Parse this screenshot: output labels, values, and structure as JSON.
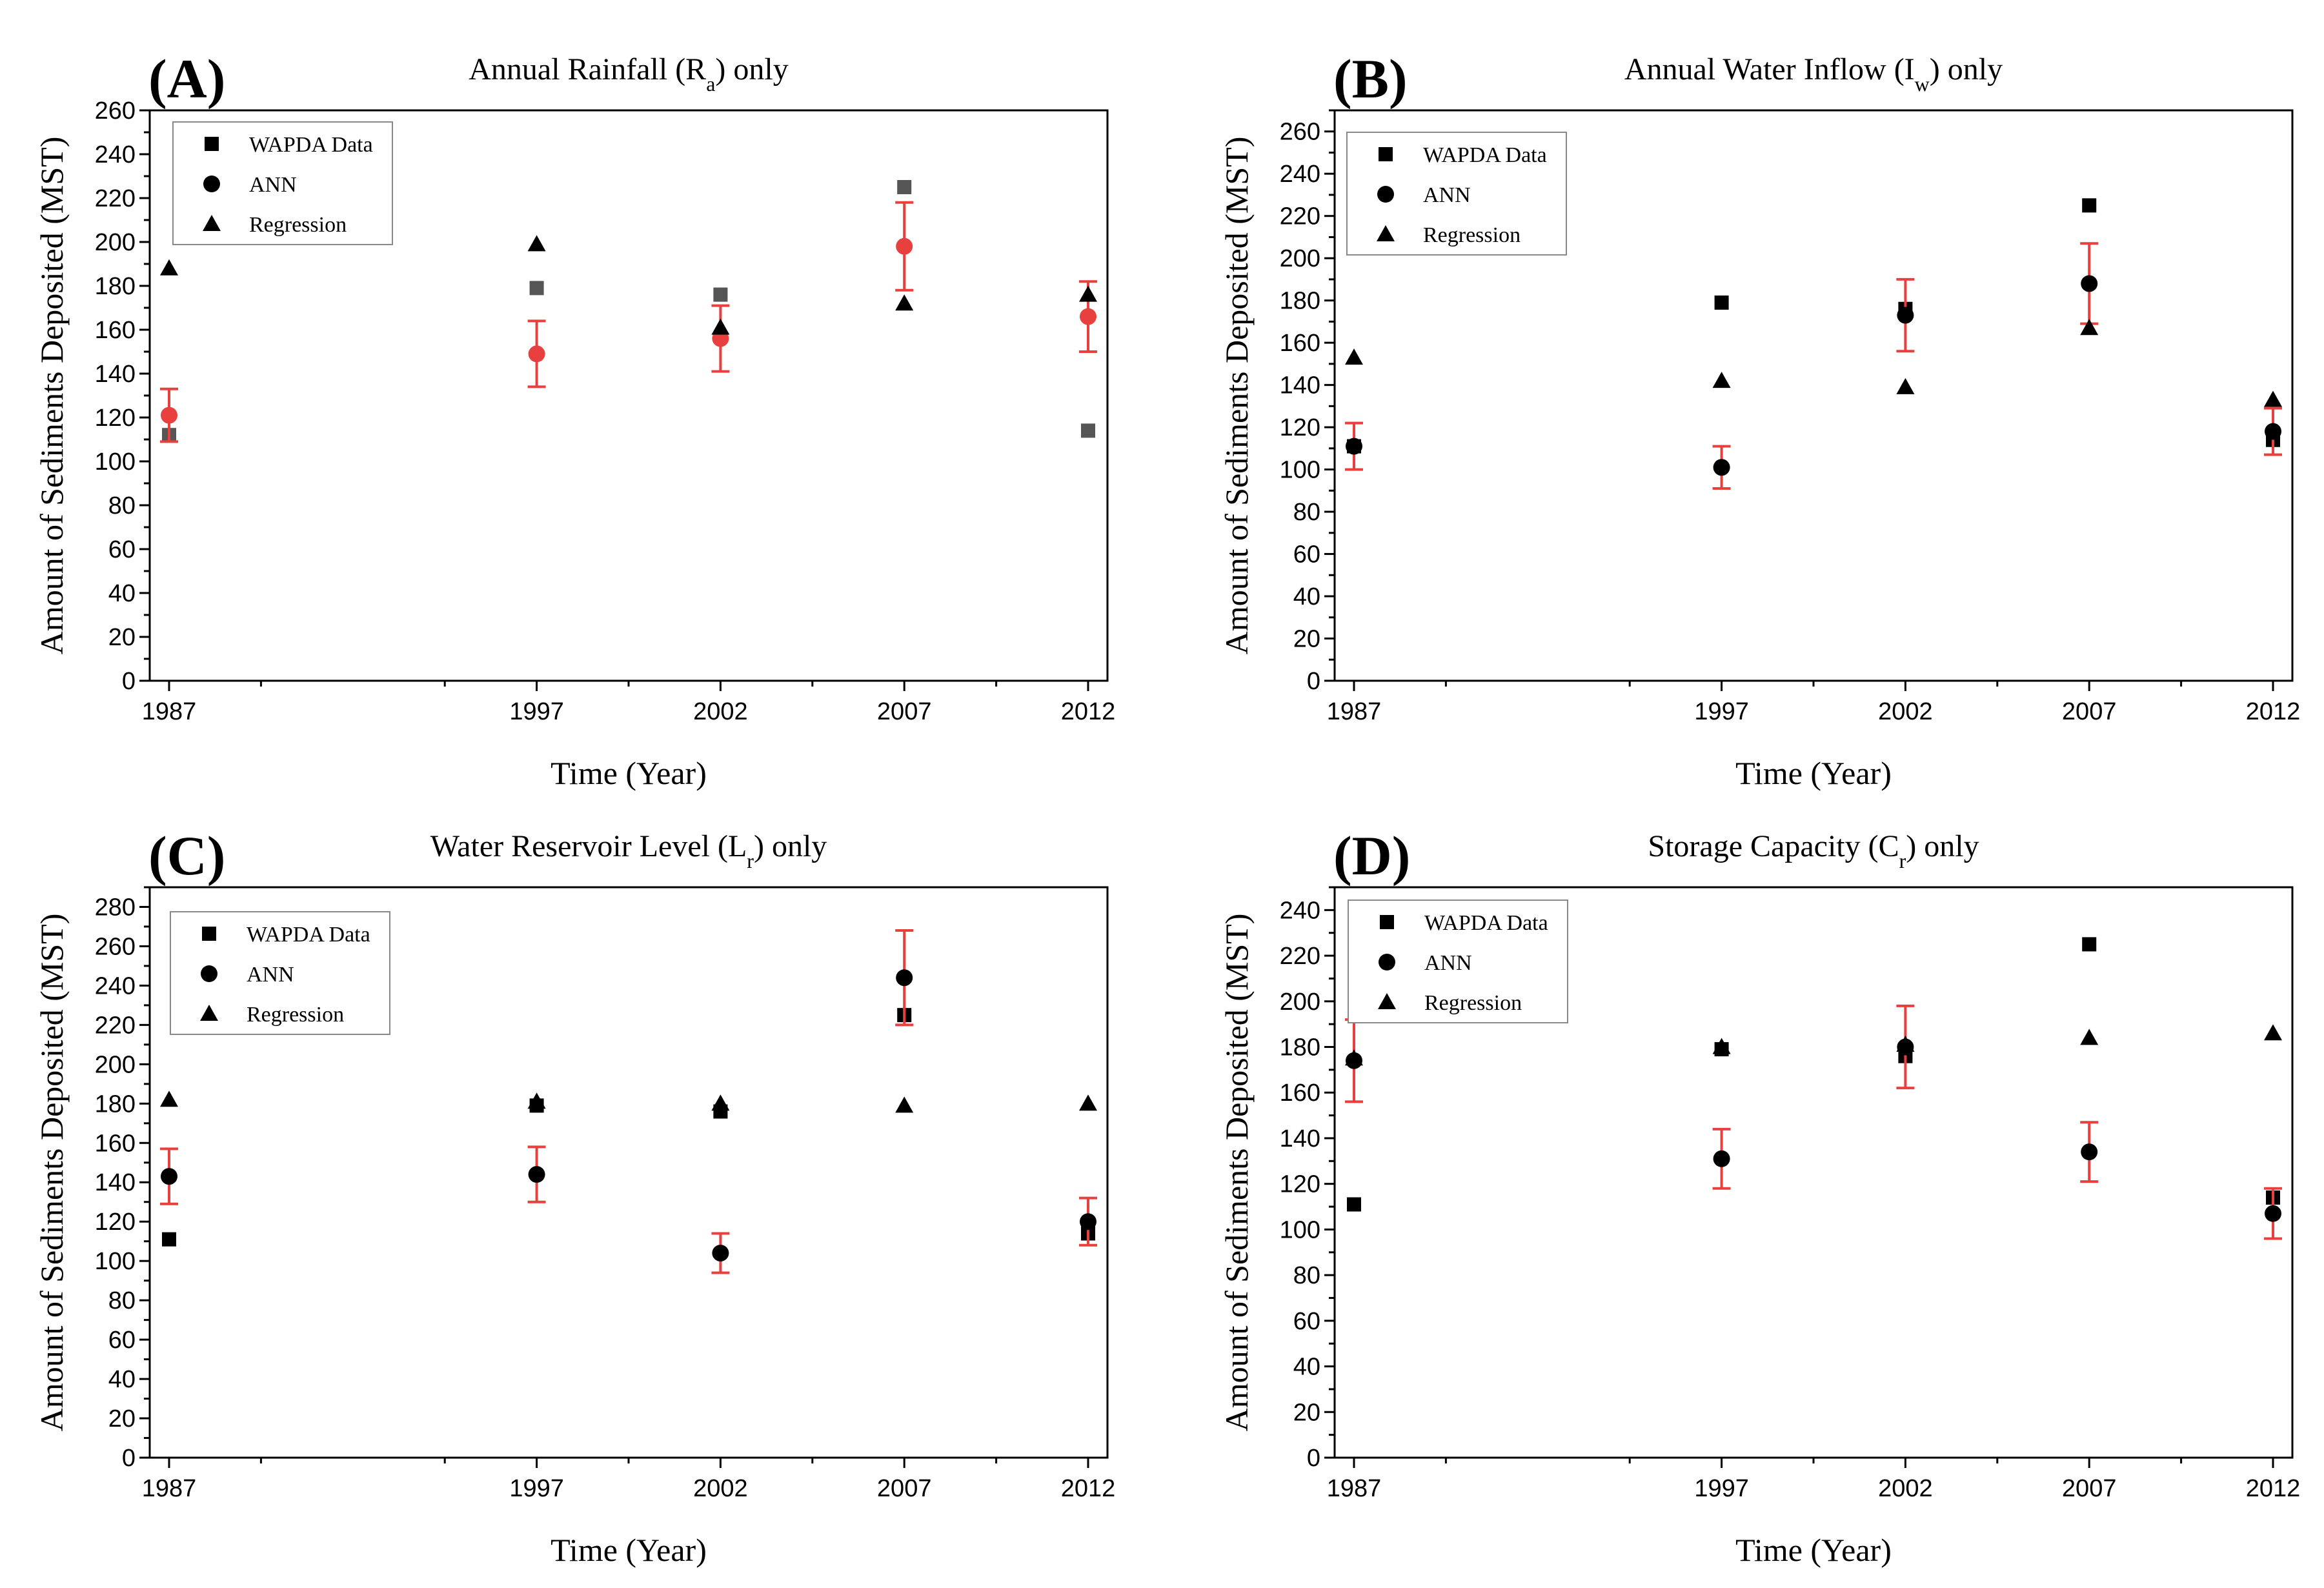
{
  "figure": {
    "legend_labels": {
      "wapda": "WAPDA Data",
      "ann": "ANN",
      "regression": "Regression"
    }
  },
  "chart_data": [
    {
      "type": "scatter",
      "panel_label": "(A)",
      "title_main": "Annual Rainfall (R",
      "title_sub": "a",
      "title_tail": ") only",
      "xlabel": "Time (Year)",
      "ylabel": "Amount of Sediments Deposited (MST)",
      "x_ticks": [
        1987,
        1997,
        2002,
        2007,
        2012
      ],
      "xlim": [
        1987,
        2012
      ],
      "ylim": [
        0,
        260
      ],
      "y_major_step": 20,
      "legend_position": "top-left",
      "series": [
        {
          "name": "WAPDA Data",
          "marker": "square",
          "color": "#555555",
          "points": [
            [
              1987,
              112
            ],
            [
              1997,
              179
            ],
            [
              2002,
              176
            ],
            [
              2007,
              225
            ],
            [
              2012,
              114
            ]
          ]
        },
        {
          "name": "ANN",
          "marker": "circle",
          "color": "#e8403e",
          "error_color": "#e8403e",
          "points": [
            [
              1987,
              121,
              12
            ],
            [
              1997,
              149,
              15
            ],
            [
              2002,
              156,
              15
            ],
            [
              2007,
              198,
              20
            ],
            [
              2012,
              166,
              16
            ]
          ]
        },
        {
          "name": "Regression",
          "marker": "triangle",
          "color": "#000000",
          "points": [
            [
              1987,
              188
            ],
            [
              1997,
              199
            ],
            [
              2002,
              161
            ],
            [
              2007,
              172
            ],
            [
              2012,
              176
            ]
          ]
        }
      ]
    },
    {
      "type": "scatter",
      "panel_label": "(B)",
      "title_main": "Annual Water Inflow (I",
      "title_sub": "w",
      "title_tail": ") only",
      "xlabel": "Time (Year)",
      "ylabel": "Amount of Sediments Deposited (MST)",
      "x_ticks": [
        1987,
        1997,
        2002,
        2007,
        2012
      ],
      "xlim": [
        1987,
        2012
      ],
      "ylim": [
        0,
        270
      ],
      "y_major_step": 20,
      "legend_position": "top-left",
      "series": [
        {
          "name": "WAPDA Data",
          "marker": "square",
          "color": "#000000",
          "points": [
            [
              1987,
              111
            ],
            [
              1997,
              179
            ],
            [
              2002,
              176
            ],
            [
              2007,
              225
            ],
            [
              2012,
              114
            ]
          ]
        },
        {
          "name": "ANN",
          "marker": "circle",
          "color": "#000000",
          "error_color": "#e8403e",
          "points": [
            [
              1987,
              111,
              11
            ],
            [
              1997,
              101,
              10
            ],
            [
              2002,
              173,
              17
            ],
            [
              2007,
              188,
              19
            ],
            [
              2012,
              118,
              11
            ]
          ]
        },
        {
          "name": "Regression",
          "marker": "triangle",
          "color": "#000000",
          "points": [
            [
              1987,
              153
            ],
            [
              1997,
              142
            ],
            [
              2002,
              139
            ],
            [
              2007,
              167
            ],
            [
              2012,
              133
            ]
          ]
        }
      ]
    },
    {
      "type": "scatter",
      "panel_label": "(C)",
      "title_main": "Water Reservoir Level (L",
      "title_sub": "r",
      "title_tail": ") only",
      "xlabel": "Time (Year)",
      "ylabel": "Amount of Sediments Deposited (MST)",
      "x_ticks": [
        1987,
        1997,
        2002,
        2007,
        2012
      ],
      "xlim": [
        1987,
        2012
      ],
      "ylim": [
        0,
        290
      ],
      "y_major_step": 20,
      "legend_position": "top-left",
      "series": [
        {
          "name": "WAPDA Data",
          "marker": "square",
          "color": "#000000",
          "points": [
            [
              1987,
              111
            ],
            [
              1997,
              179
            ],
            [
              2002,
              176
            ],
            [
              2007,
              225
            ],
            [
              2012,
              114
            ]
          ]
        },
        {
          "name": "ANN",
          "marker": "circle",
          "color": "#000000",
          "error_color": "#e8403e",
          "points": [
            [
              1987,
              143,
              14
            ],
            [
              1997,
              144,
              14
            ],
            [
              2002,
              104,
              10
            ],
            [
              2007,
              244,
              24
            ],
            [
              2012,
              120,
              12
            ]
          ]
        },
        {
          "name": "Regression",
          "marker": "triangle",
          "color": "#000000",
          "points": [
            [
              1987,
              182
            ],
            [
              1997,
              181
            ],
            [
              2002,
              180
            ],
            [
              2007,
              179
            ],
            [
              2012,
              180
            ]
          ]
        }
      ]
    },
    {
      "type": "scatter",
      "panel_label": "(D)",
      "title_main": "Storage Capacity (C",
      "title_sub": "r",
      "title_tail": ") only",
      "xlabel": "Time (Year)",
      "ylabel": "Amount of Sediments Deposited (MST)",
      "x_ticks": [
        1987,
        1997,
        2002,
        2007,
        2012
      ],
      "xlim": [
        1987,
        2012
      ],
      "ylim": [
        0,
        250
      ],
      "y_major_step": 20,
      "legend_position": "top-left",
      "series": [
        {
          "name": "WAPDA Data",
          "marker": "square",
          "color": "#000000",
          "points": [
            [
              1987,
              111
            ],
            [
              1997,
              179
            ],
            [
              2002,
              176
            ],
            [
              2007,
              225
            ],
            [
              2012,
              114
            ]
          ]
        },
        {
          "name": "ANN",
          "marker": "circle",
          "color": "#000000",
          "error_color": "#e8403e",
          "points": [
            [
              1987,
              174,
              18
            ],
            [
              1997,
              131,
              13
            ],
            [
              2002,
              180,
              18
            ],
            [
              2007,
              134,
              13
            ],
            [
              2012,
              107,
              11
            ]
          ]
        },
        {
          "name": "Regression",
          "marker": "triangle",
          "color": "#000000",
          "points": [
            [
              1987,
              175
            ],
            [
              1997,
              180
            ],
            [
              2002,
              181
            ],
            [
              2007,
              184
            ],
            [
              2012,
              186
            ]
          ]
        }
      ]
    }
  ]
}
